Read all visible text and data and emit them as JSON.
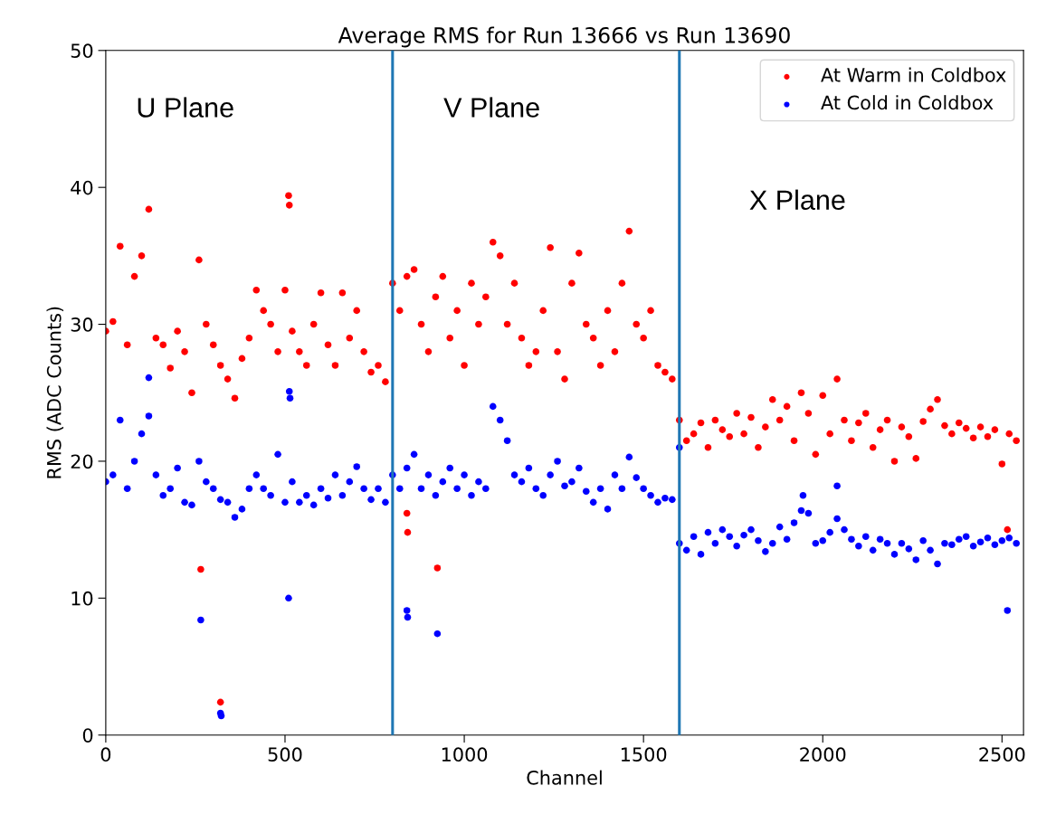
{
  "chart_data": {
    "type": "scatter",
    "title": "Average RMS for Run 13666 vs Run 13690",
    "xlabel": "Channel",
    "ylabel": "RMS (ADC Counts)",
    "xlim": [
      0,
      2560
    ],
    "xticks": [
      0,
      500,
      1000,
      1500,
      2000,
      2500
    ],
    "ylim": [
      0,
      50
    ],
    "yticks": [
      0,
      10,
      20,
      30,
      40,
      50
    ],
    "grid": false,
    "legend": "top right",
    "marker": "circle",
    "ref_lines": [
      {
        "axis": "x",
        "value": 800,
        "color": "#1f77b4"
      },
      {
        "axis": "x",
        "value": 1600,
        "color": "#1f77b4"
      }
    ],
    "annotations": [
      "U Plane",
      "V Plane",
      "X Plane"
    ],
    "series": [
      {
        "name": "At Warm in Coldbox",
        "color": "#ff0000",
        "x": [
          0,
          20,
          40,
          60,
          80,
          100,
          120,
          140,
          160,
          180,
          200,
          220,
          240,
          260,
          280,
          300,
          320,
          340,
          360,
          380,
          400,
          420,
          440,
          460,
          480,
          500,
          520,
          540,
          560,
          580,
          600,
          620,
          640,
          660,
          680,
          700,
          720,
          740,
          760,
          780,
          800,
          820,
          840,
          860,
          880,
          900,
          920,
          940,
          960,
          980,
          1000,
          1020,
          1040,
          1060,
          1080,
          1100,
          1120,
          1140,
          1160,
          1180,
          1200,
          1220,
          1240,
          1260,
          1280,
          1300,
          1320,
          1340,
          1360,
          1380,
          1400,
          1420,
          1440,
          1460,
          1480,
          1500,
          1520,
          1540,
          1560,
          1580,
          1600,
          1620,
          1640,
          1660,
          1680,
          1700,
          1720,
          1740,
          1760,
          1780,
          1800,
          1820,
          1840,
          1860,
          1880,
          1900,
          1920,
          1940,
          1960,
          1980,
          2000,
          2020,
          2040,
          2060,
          2080,
          2100,
          2120,
          2140,
          2160,
          2180,
          2200,
          2220,
          2240,
          2260,
          2280,
          2300,
          2320,
          2340,
          2360,
          2380,
          2400,
          2420,
          2440,
          2460,
          2480,
          2500,
          2520,
          2540,
          265,
          320,
          510,
          512,
          840,
          842,
          925,
          2515
        ],
        "values": [
          29.5,
          30.2,
          35.7,
          28.5,
          33.5,
          35,
          38.4,
          29,
          28.5,
          26.8,
          29.5,
          28,
          25,
          34.7,
          30,
          28.5,
          27,
          26,
          24.6,
          27.5,
          29,
          32.5,
          31,
          30,
          28,
          32.5,
          29.5,
          28,
          27,
          30,
          32.3,
          28.5,
          27,
          32.3,
          29,
          31,
          28,
          26.5,
          27,
          25.8,
          33,
          31,
          33.5,
          34,
          30,
          28,
          32,
          33.5,
          29,
          31,
          27,
          33,
          30,
          32,
          36,
          35,
          30,
          33,
          29,
          27,
          28,
          31,
          35.6,
          28,
          26,
          33,
          35.2,
          30,
          29,
          27,
          31,
          28,
          33,
          36.8,
          30,
          29,
          31,
          27,
          26.5,
          26,
          23,
          21.5,
          22,
          22.8,
          21,
          23,
          22.3,
          21.8,
          23.5,
          22,
          23.2,
          21,
          22.5,
          24.5,
          23,
          24,
          21.5,
          25,
          23.5,
          20.5,
          24.8,
          22,
          26,
          23,
          21.5,
          22.8,
          23.5,
          21,
          22.3,
          23,
          20,
          22.5,
          21.8,
          20.2,
          22.9,
          23.8,
          24.5,
          22.6,
          22,
          22.8,
          22.4,
          21.7,
          22.5,
          21.8,
          22.3,
          19.8,
          22,
          21.5,
          12.1,
          2.4,
          39.4,
          38.7,
          16.2,
          14.8,
          12.2,
          15
        ]
      },
      {
        "name": "At Cold in Coldbox",
        "color": "#0000ff",
        "x": [
          0,
          20,
          40,
          60,
          80,
          100,
          120,
          140,
          160,
          180,
          200,
          220,
          240,
          260,
          280,
          300,
          320,
          340,
          360,
          380,
          400,
          420,
          440,
          460,
          480,
          500,
          520,
          540,
          560,
          580,
          600,
          620,
          640,
          660,
          680,
          700,
          720,
          740,
          760,
          780,
          800,
          820,
          840,
          860,
          880,
          900,
          920,
          940,
          960,
          980,
          1000,
          1020,
          1040,
          1060,
          1080,
          1100,
          1120,
          1140,
          1160,
          1180,
          1200,
          1220,
          1240,
          1260,
          1280,
          1300,
          1320,
          1340,
          1360,
          1380,
          1400,
          1420,
          1440,
          1460,
          1480,
          1500,
          1520,
          1540,
          1560,
          1580,
          1600,
          1620,
          1640,
          1660,
          1680,
          1700,
          1720,
          1740,
          1760,
          1780,
          1800,
          1820,
          1840,
          1860,
          1880,
          1900,
          1920,
          1940,
          1960,
          1980,
          2000,
          2020,
          2040,
          2060,
          2080,
          2100,
          2120,
          2140,
          2160,
          2180,
          2200,
          2220,
          2240,
          2260,
          2280,
          2300,
          2320,
          2340,
          2360,
          2380,
          2400,
          2420,
          2440,
          2460,
          2480,
          2500,
          2520,
          2540,
          120,
          265,
          320,
          322,
          510,
          512,
          514,
          840,
          842,
          925,
          1600,
          1945,
          2040,
          2515
        ],
        "values": [
          18.5,
          19,
          23,
          18,
          20,
          22,
          23.3,
          19,
          17.5,
          18,
          19.5,
          17,
          16.8,
          20,
          18.5,
          18,
          17.2,
          17,
          15.9,
          16.5,
          18,
          19,
          18,
          17.5,
          20.5,
          17,
          18.5,
          17,
          17.5,
          16.8,
          18,
          17.3,
          19,
          17.5,
          18.5,
          19.6,
          18,
          17.2,
          18,
          17,
          19,
          18,
          19.5,
          20.5,
          18,
          19,
          17.5,
          18.5,
          19.5,
          18,
          19,
          17.5,
          18.5,
          18,
          24,
          23,
          21.5,
          19,
          18.5,
          19.5,
          18,
          17.5,
          19,
          20,
          18.2,
          18.5,
          19.5,
          17.8,
          17,
          18,
          16.5,
          19,
          18,
          20.3,
          18.8,
          18,
          17.5,
          17,
          17.3,
          17.2,
          14,
          13.5,
          14.5,
          13.2,
          14.8,
          14,
          15,
          14.5,
          13.8,
          14.6,
          15,
          14.2,
          13.4,
          14,
          15.2,
          14.3,
          15.5,
          16.4,
          16.2,
          14,
          14.2,
          14.8,
          15.8,
          15,
          14.3,
          13.8,
          14.5,
          13.5,
          14.3,
          14,
          13.2,
          14,
          13.6,
          12.8,
          14.2,
          13.5,
          12.5,
          14,
          13.9,
          14.3,
          14.5,
          13.8,
          14.1,
          14.4,
          13.9,
          14.2,
          14.4,
          14,
          26.1,
          8.4,
          1.6,
          1.4,
          10,
          25.1,
          24.6,
          9.1,
          8.6,
          7.4,
          21,
          17.5,
          18.2,
          9.1
        ]
      }
    ]
  }
}
